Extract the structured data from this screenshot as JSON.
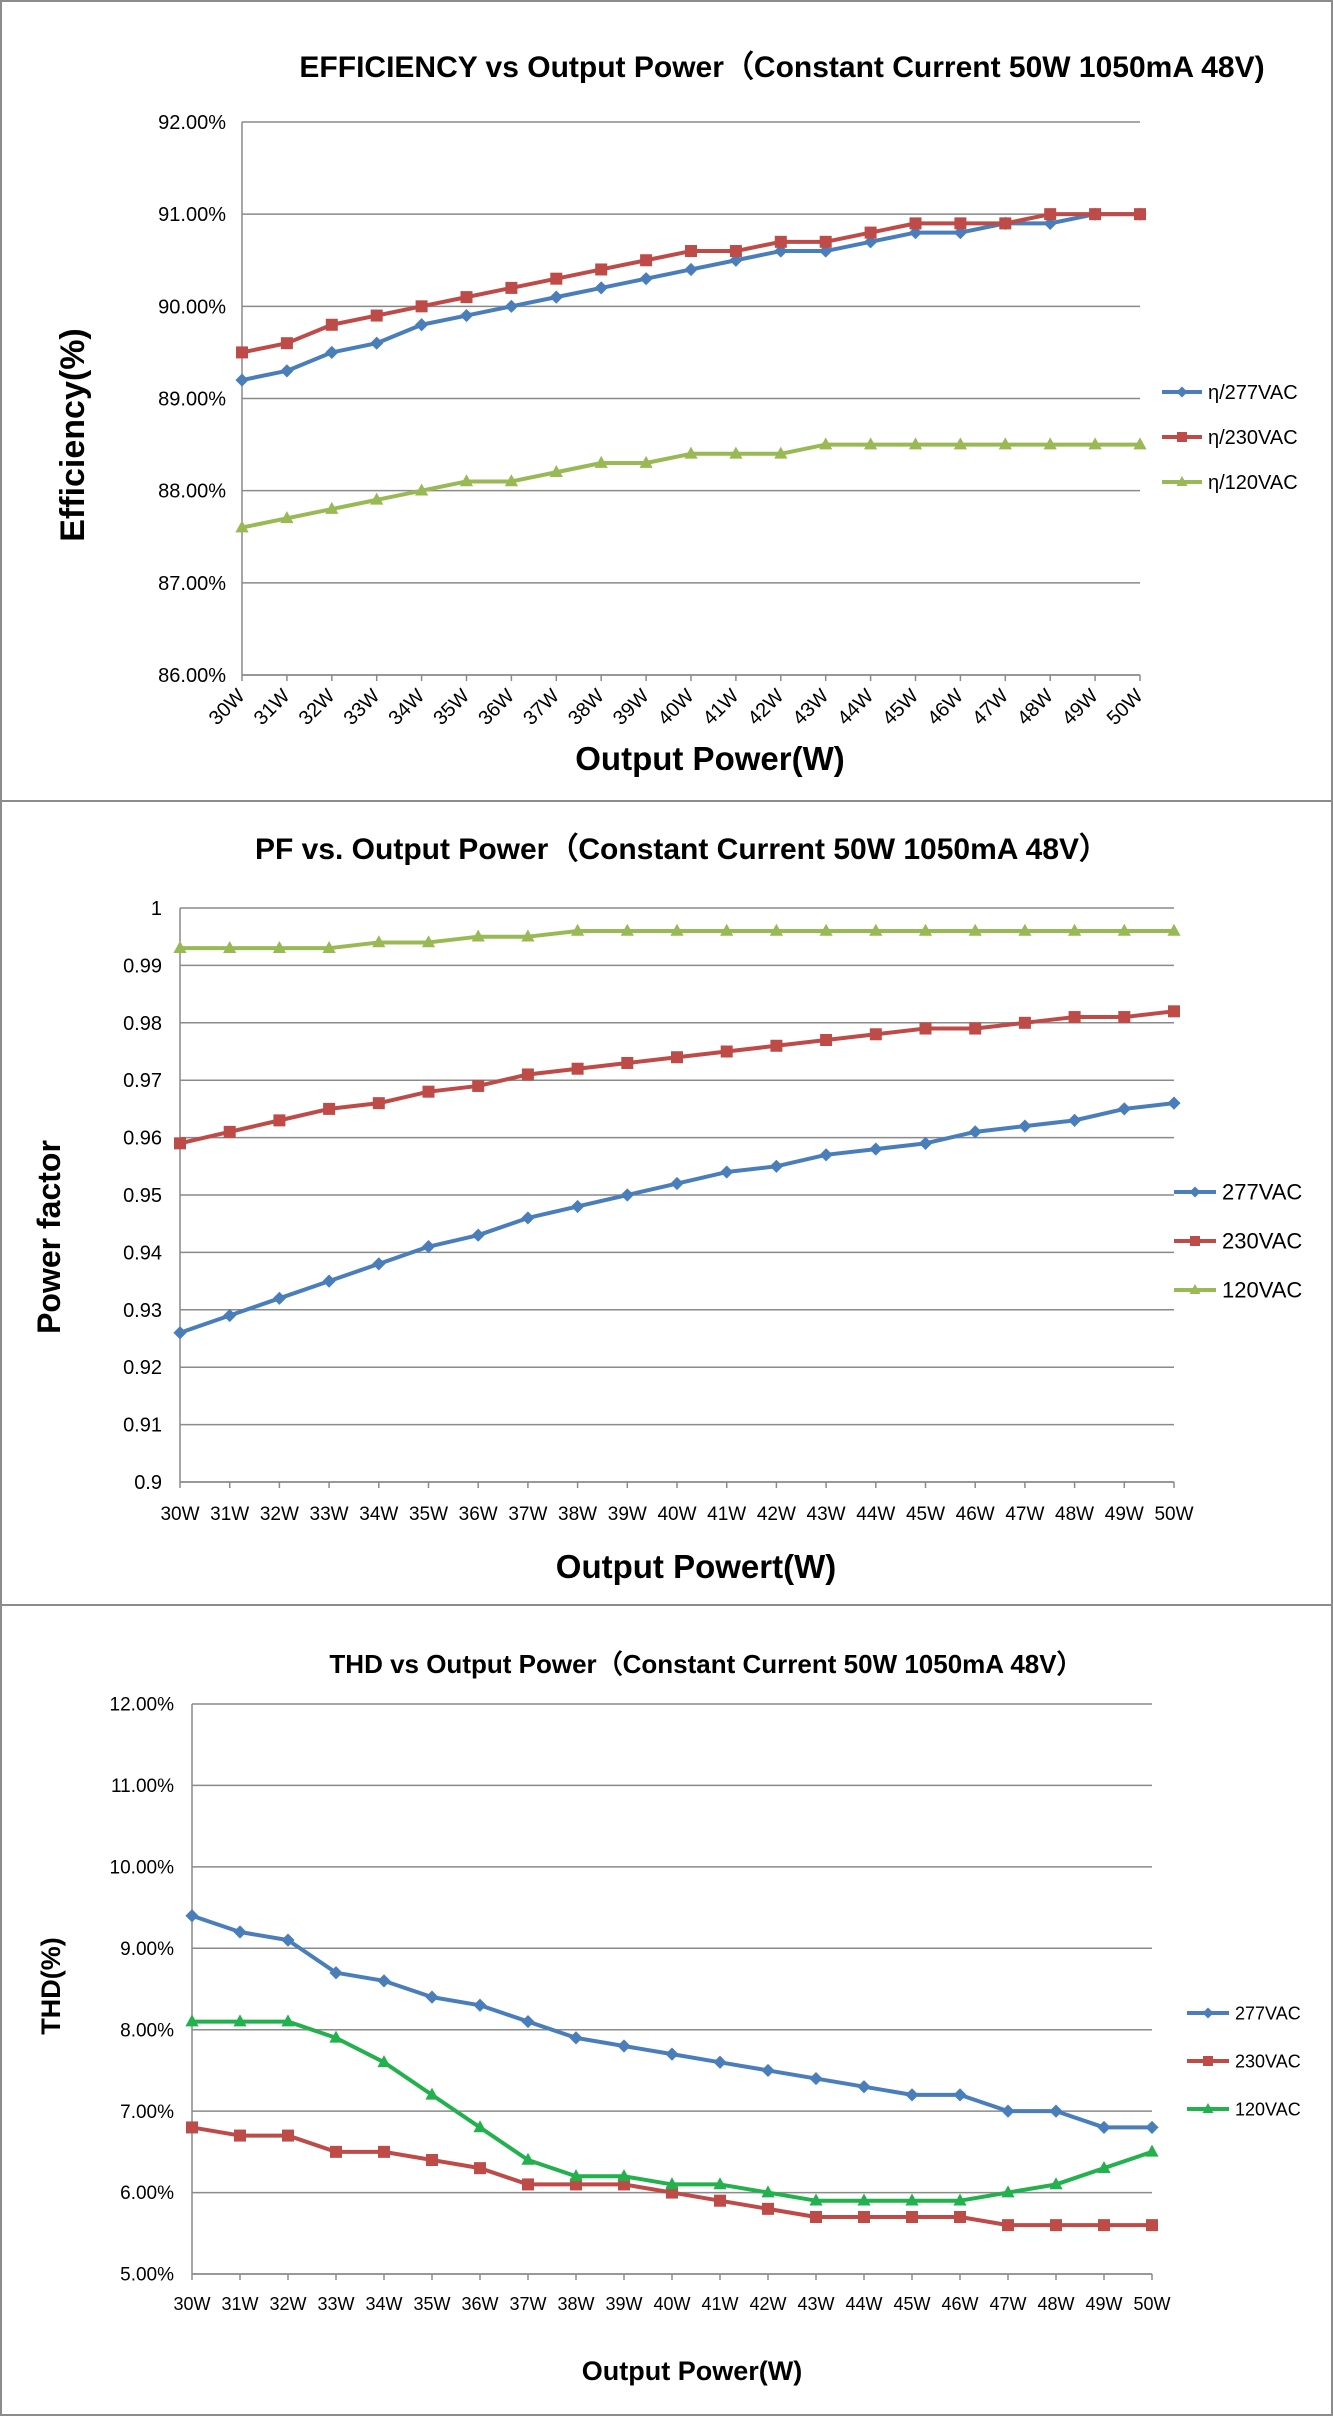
{
  "chart_data": [
    {
      "type": "line",
      "title": "EFFICIENCY vs Output Power（Constant Current 50W 1050mA 48V)",
      "xlabel": "Output Power(W)",
      "ylabel": "Efficiency(%)",
      "categories": [
        "30W",
        "31W",
        "32W",
        "33W",
        "34W",
        "35W",
        "36W",
        "37W",
        "38W",
        "39W",
        "40W",
        "41W",
        "42W",
        "43W",
        "44W",
        "45W",
        "46W",
        "47W",
        "48W",
        "49W",
        "50W"
      ],
      "ylim": [
        86,
        92
      ],
      "yticks": [
        "86.00%",
        "87.00%",
        "88.00%",
        "89.00%",
        "90.00%",
        "91.00%",
        "92.00%"
      ],
      "grid": true,
      "legend_position": "right",
      "series": [
        {
          "name": "η/277VAC",
          "color": "#4a7ebb",
          "marker": "diamond",
          "values": [
            89.2,
            89.3,
            89.5,
            89.6,
            89.8,
            89.9,
            90.0,
            90.1,
            90.2,
            90.3,
            90.4,
            90.5,
            90.6,
            90.6,
            90.7,
            90.8,
            90.8,
            90.9,
            90.9,
            91.0,
            91.0
          ]
        },
        {
          "name": "η/230VAC",
          "color": "#be4b48",
          "marker": "square",
          "values": [
            89.5,
            89.6,
            89.8,
            89.9,
            90.0,
            90.1,
            90.2,
            90.3,
            90.4,
            90.5,
            90.6,
            90.6,
            90.7,
            90.7,
            90.8,
            90.9,
            90.9,
            90.9,
            91.0,
            91.0,
            91.0
          ]
        },
        {
          "name": "η/120VAC",
          "color": "#98b954",
          "marker": "triangle",
          "values": [
            87.6,
            87.7,
            87.8,
            87.9,
            88.0,
            88.1,
            88.1,
            88.2,
            88.3,
            88.3,
            88.4,
            88.4,
            88.4,
            88.5,
            88.5,
            88.5,
            88.5,
            88.5,
            88.5,
            88.5,
            88.5
          ]
        }
      ]
    },
    {
      "type": "line",
      "title": "PF vs. Output Power（Constant Current 50W 1050mA 48V）",
      "xlabel": "Output Powert(W)",
      "ylabel": "Power factor",
      "categories": [
        "30W",
        "31W",
        "32W",
        "33W",
        "34W",
        "35W",
        "36W",
        "37W",
        "38W",
        "39W",
        "40W",
        "41W",
        "42W",
        "43W",
        "44W",
        "45W",
        "46W",
        "47W",
        "48W",
        "49W",
        "50W"
      ],
      "ylim": [
        0.9,
        1
      ],
      "yticks": [
        "0.9",
        "0.91",
        "0.92",
        "0.93",
        "0.94",
        "0.95",
        "0.96",
        "0.97",
        "0.98",
        "0.99",
        "1"
      ],
      "grid": true,
      "legend_position": "right",
      "series": [
        {
          "name": "277VAC",
          "color": "#4a7ebb",
          "marker": "diamond",
          "values": [
            0.926,
            0.929,
            0.932,
            0.935,
            0.938,
            0.941,
            0.943,
            0.946,
            0.948,
            0.95,
            0.952,
            0.954,
            0.955,
            0.957,
            0.958,
            0.959,
            0.961,
            0.962,
            0.963,
            0.965,
            0.966
          ]
        },
        {
          "name": "230VAC",
          "color": "#be4b48",
          "marker": "square",
          "values": [
            0.959,
            0.961,
            0.963,
            0.965,
            0.966,
            0.968,
            0.969,
            0.971,
            0.972,
            0.973,
            0.974,
            0.975,
            0.976,
            0.977,
            0.978,
            0.979,
            0.979,
            0.98,
            0.981,
            0.981,
            0.982
          ]
        },
        {
          "name": "120VAC",
          "color": "#98b954",
          "marker": "triangle",
          "values": [
            0.993,
            0.993,
            0.993,
            0.993,
            0.994,
            0.994,
            0.995,
            0.995,
            0.996,
            0.996,
            0.996,
            0.996,
            0.996,
            0.996,
            0.996,
            0.996,
            0.996,
            0.996,
            0.996,
            0.996,
            0.996
          ]
        }
      ]
    },
    {
      "type": "line",
      "title": "THD vs Output Power（Constant Current 50W  1050mA 48V）",
      "xlabel": "Output Power(W)",
      "ylabel": "THD(%)",
      "categories": [
        "30W",
        "31W",
        "32W",
        "33W",
        "34W",
        "35W",
        "36W",
        "37W",
        "38W",
        "39W",
        "40W",
        "41W",
        "42W",
        "43W",
        "44W",
        "45W",
        "46W",
        "47W",
        "48W",
        "49W",
        "50W"
      ],
      "ylim": [
        5,
        12
      ],
      "yticks": [
        "5.00%",
        "6.00%",
        "7.00%",
        "8.00%",
        "9.00%",
        "10.00%",
        "11.00%",
        "12.00%"
      ],
      "grid": true,
      "legend_position": "right",
      "series": [
        {
          "name": "277VAC",
          "color": "#4a7ebb",
          "marker": "diamond",
          "values": [
            9.4,
            9.2,
            9.1,
            8.7,
            8.6,
            8.4,
            8.3,
            8.1,
            7.9,
            7.8,
            7.7,
            7.6,
            7.5,
            7.4,
            7.3,
            7.2,
            7.2,
            7.0,
            7.0,
            6.8,
            6.8
          ]
        },
        {
          "name": "230VAC",
          "color": "#be4b48",
          "marker": "square",
          "values": [
            6.8,
            6.7,
            6.7,
            6.5,
            6.5,
            6.4,
            6.3,
            6.1,
            6.1,
            6.1,
            6.0,
            5.9,
            5.8,
            5.7,
            5.7,
            5.7,
            5.7,
            5.6,
            5.6,
            5.6,
            5.6
          ]
        },
        {
          "name": "120VAC",
          "color": "#22b14c",
          "marker": "triangle",
          "values": [
            8.1,
            8.1,
            8.1,
            7.9,
            7.6,
            7.2,
            6.8,
            6.4,
            6.2,
            6.2,
            6.1,
            6.1,
            6.0,
            5.9,
            5.9,
            5.9,
            5.9,
            6.0,
            6.1,
            6.3,
            6.5
          ]
        }
      ]
    }
  ]
}
